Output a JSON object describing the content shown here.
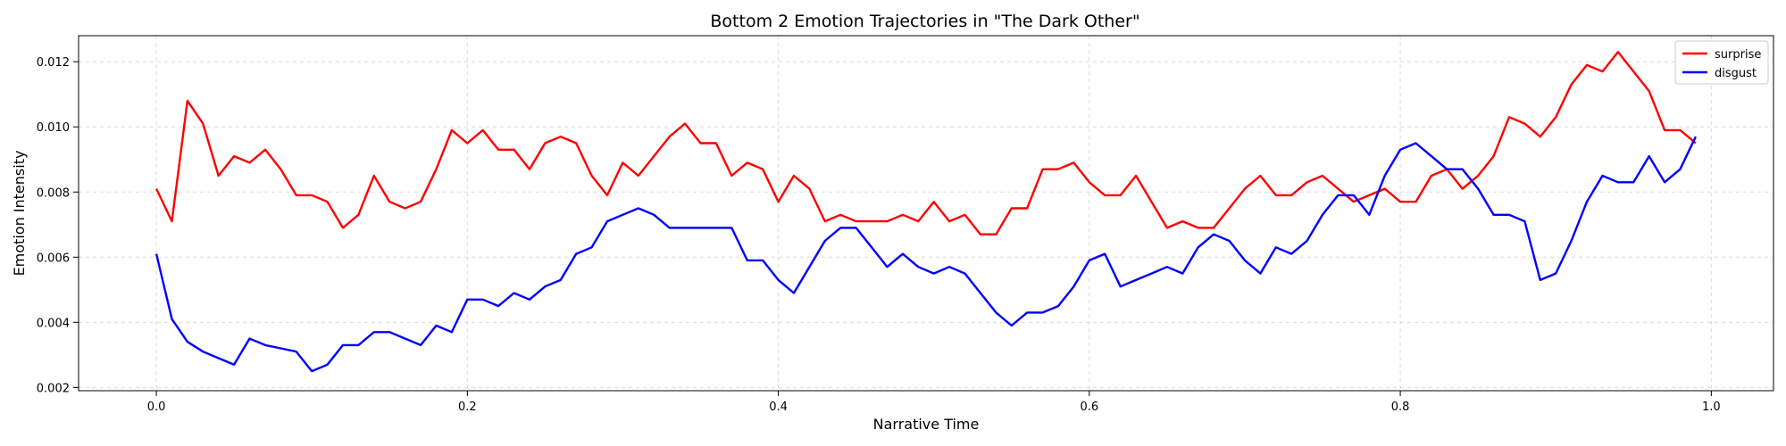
{
  "chart_data": {
    "type": "line",
    "title": "Bottom 2 Emotion Trajectories in \"The Dark Other\"",
    "xlabel": "Narrative Time",
    "ylabel": "Emotion Intensity",
    "xlim": [
      -0.05,
      1.04
    ],
    "ylim": [
      0.0019,
      0.0128
    ],
    "xticks": [
      0.0,
      0.2,
      0.4,
      0.6,
      0.8,
      1.0
    ],
    "xtick_labels": [
      "0.0",
      "0.2",
      "0.4",
      "0.6",
      "0.8",
      "1.0"
    ],
    "yticks": [
      0.002,
      0.004,
      0.006,
      0.008,
      0.01,
      0.012
    ],
    "ytick_labels": [
      "0.002",
      "0.004",
      "0.006",
      "0.008",
      "0.010",
      "0.012"
    ],
    "grid": true,
    "legend_position": "top-right",
    "series": [
      {
        "name": "surprise",
        "color": "#ff0000",
        "x": [
          0.0,
          0.01,
          0.02,
          0.03,
          0.04,
          0.05,
          0.06,
          0.07,
          0.08,
          0.09,
          0.1,
          0.11,
          0.12,
          0.13,
          0.14,
          0.15,
          0.16,
          0.17,
          0.18,
          0.19,
          0.2,
          0.21,
          0.22,
          0.23,
          0.24,
          0.25,
          0.26,
          0.27,
          0.28,
          0.29,
          0.3,
          0.31,
          0.32,
          0.33,
          0.34,
          0.35,
          0.36,
          0.37,
          0.38,
          0.39,
          0.4,
          0.41,
          0.42,
          0.43,
          0.44,
          0.45,
          0.46,
          0.47,
          0.48,
          0.49,
          0.5,
          0.51,
          0.52,
          0.53,
          0.54,
          0.55,
          0.56,
          0.57,
          0.58,
          0.59,
          0.6,
          0.61,
          0.62,
          0.63,
          0.64,
          0.65,
          0.66,
          0.67,
          0.68,
          0.69,
          0.7,
          0.71,
          0.72,
          0.73,
          0.74,
          0.75,
          0.76,
          0.77,
          0.78,
          0.79,
          0.8,
          0.81,
          0.82,
          0.83,
          0.84,
          0.85,
          0.86,
          0.87,
          0.88,
          0.89,
          0.9,
          0.91,
          0.92,
          0.93,
          0.94,
          0.95,
          0.96,
          0.97,
          0.98,
          0.99
        ],
        "y": [
          0.0081,
          0.0071,
          0.0108,
          0.0101,
          0.0085,
          0.0091,
          0.0089,
          0.0093,
          0.0087,
          0.0079,
          0.0079,
          0.0077,
          0.0069,
          0.0073,
          0.0085,
          0.0077,
          0.0075,
          0.0077,
          0.0087,
          0.0099,
          0.0095,
          0.0099,
          0.0093,
          0.0093,
          0.0087,
          0.0095,
          0.0097,
          0.0095,
          0.0085,
          0.0079,
          0.0089,
          0.0085,
          0.0091,
          0.0097,
          0.0101,
          0.0095,
          0.0095,
          0.0085,
          0.0089,
          0.0087,
          0.0077,
          0.0085,
          0.0081,
          0.0071,
          0.0073,
          0.0071,
          0.0071,
          0.0071,
          0.0073,
          0.0071,
          0.0077,
          0.0071,
          0.0073,
          0.0067,
          0.0067,
          0.0075,
          0.0075,
          0.0087,
          0.0087,
          0.0089,
          0.0083,
          0.0079,
          0.0079,
          0.0085,
          0.0077,
          0.0069,
          0.0071,
          0.0069,
          0.0069,
          0.0075,
          0.0081,
          0.0085,
          0.0079,
          0.0079,
          0.0083,
          0.0085,
          0.0081,
          0.0077,
          0.0079,
          0.0081,
          0.0077,
          0.0077,
          0.0085,
          0.0087,
          0.0081,
          0.0085,
          0.0091,
          0.0103,
          0.0101,
          0.0097,
          0.0103,
          0.0113,
          0.0119,
          0.0117,
          0.0123,
          0.0117,
          0.0111,
          0.0099,
          0.0099,
          0.0095
        ]
      },
      {
        "name": "disgust",
        "color": "#0000ff",
        "x": [
          0.0,
          0.01,
          0.02,
          0.03,
          0.04,
          0.05,
          0.06,
          0.07,
          0.08,
          0.09,
          0.1,
          0.11,
          0.12,
          0.13,
          0.14,
          0.15,
          0.16,
          0.17,
          0.18,
          0.19,
          0.2,
          0.21,
          0.22,
          0.23,
          0.24,
          0.25,
          0.26,
          0.27,
          0.28,
          0.29,
          0.3,
          0.31,
          0.32,
          0.33,
          0.34,
          0.35,
          0.36,
          0.37,
          0.38,
          0.39,
          0.4,
          0.41,
          0.42,
          0.43,
          0.44,
          0.45,
          0.46,
          0.47,
          0.48,
          0.49,
          0.5,
          0.51,
          0.52,
          0.53,
          0.54,
          0.55,
          0.56,
          0.57,
          0.58,
          0.59,
          0.6,
          0.61,
          0.62,
          0.63,
          0.64,
          0.65,
          0.66,
          0.67,
          0.68,
          0.69,
          0.7,
          0.71,
          0.72,
          0.73,
          0.74,
          0.75,
          0.76,
          0.77,
          0.78,
          0.79,
          0.8,
          0.81,
          0.82,
          0.83,
          0.84,
          0.85,
          0.86,
          0.87,
          0.88,
          0.89,
          0.9,
          0.91,
          0.92,
          0.93,
          0.94,
          0.95,
          0.96,
          0.97,
          0.98,
          0.99
        ],
        "y": [
          0.0061,
          0.0041,
          0.0034,
          0.0031,
          0.0029,
          0.0027,
          0.0035,
          0.0033,
          0.0032,
          0.0031,
          0.0025,
          0.0027,
          0.0033,
          0.0033,
          0.0037,
          0.0037,
          0.0035,
          0.0033,
          0.0039,
          0.0037,
          0.0047,
          0.0047,
          0.0045,
          0.0049,
          0.0047,
          0.0051,
          0.0053,
          0.0061,
          0.0063,
          0.0071,
          0.0073,
          0.0075,
          0.0073,
          0.0069,
          0.0069,
          0.0069,
          0.0069,
          0.0069,
          0.0059,
          0.0059,
          0.0053,
          0.0049,
          0.0057,
          0.0065,
          0.0069,
          0.0069,
          0.0063,
          0.0057,
          0.0061,
          0.0057,
          0.0055,
          0.0057,
          0.0055,
          0.0049,
          0.0043,
          0.0039,
          0.0043,
          0.0043,
          0.0045,
          0.0051,
          0.0059,
          0.0061,
          0.0051,
          0.0053,
          0.0055,
          0.0057,
          0.0055,
          0.0063,
          0.0067,
          0.0065,
          0.0059,
          0.0055,
          0.0063,
          0.0061,
          0.0065,
          0.0073,
          0.0079,
          0.0079,
          0.0073,
          0.0085,
          0.0093,
          0.0095,
          0.0091,
          0.0087,
          0.0087,
          0.0081,
          0.0073,
          0.0073,
          0.0071,
          0.0053,
          0.0055,
          0.0065,
          0.0077,
          0.0085,
          0.0083,
          0.0083,
          0.0091,
          0.0083,
          0.0087,
          0.0097
        ]
      }
    ]
  }
}
